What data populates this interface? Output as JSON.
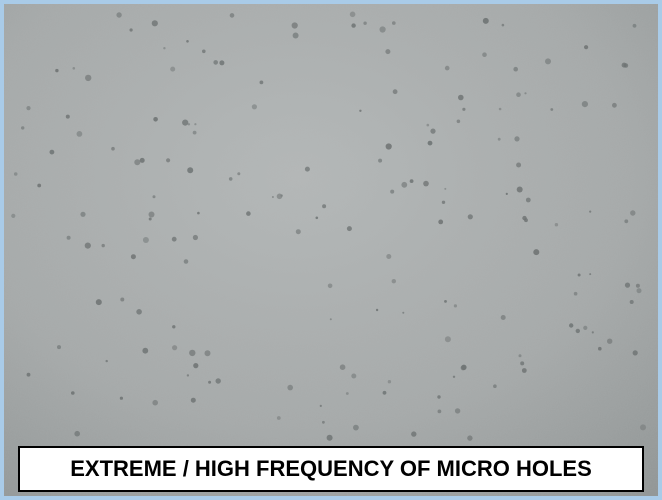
{
  "caption": "EXTREME / HIGH FREQUENCY OF MICRO HOLES"
}
